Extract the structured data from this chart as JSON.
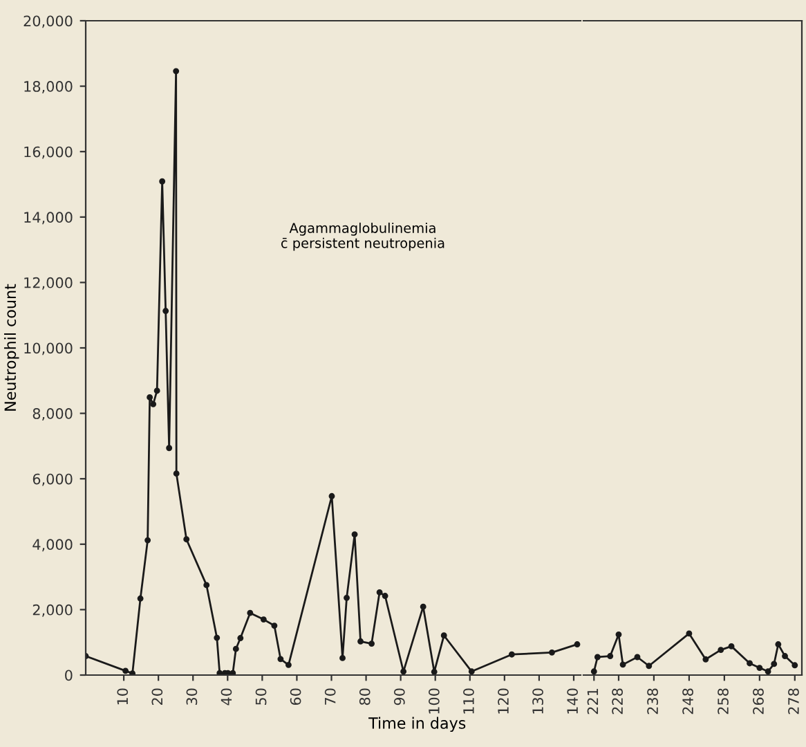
{
  "chart_data": [
    {
      "type": "line",
      "xlabel": "Time in days",
      "ylabel": "Neutrophil count",
      "annotations": [
        "Agammaglobulinemia\nc̄ persistent neutropenia"
      ],
      "marker": "circle",
      "grid": false,
      "legend": false,
      "xlim": [
        -1,
        142
      ],
      "xticks": [
        10,
        20,
        30,
        40,
        50,
        60,
        70,
        80,
        90,
        100,
        110,
        120,
        130,
        140
      ],
      "ylim": [
        0,
        20000
      ],
      "yticks": [
        0,
        {
          "value": 2000,
          "label": "2,000"
        },
        {
          "value": 4000,
          "label": "4,000"
        },
        {
          "value": 6000,
          "label": "6,000"
        },
        {
          "value": 8000,
          "label": "8,000"
        },
        {
          "value": 10000,
          "label": "10,000"
        },
        {
          "value": 12000,
          "label": "12,000"
        },
        {
          "value": 14000,
          "label": "14,000"
        },
        {
          "value": 16000,
          "label": "16,000"
        },
        {
          "value": 18000,
          "label": "18,000"
        },
        {
          "value": 20000,
          "label": "20,000"
        }
      ],
      "series": [
        {
          "color": "#1a1a1a",
          "x": [
            -1,
            10.5,
            12.5,
            14.8,
            16.9,
            17.5,
            18.5,
            19.6,
            21.1,
            22.1,
            23.1,
            25.1,
            25.2,
            28.1,
            33.9,
            36.9,
            37.7,
            39.2,
            40.1,
            41.5,
            42.4,
            43.7,
            46.5,
            50.4,
            53.5,
            55.3,
            57.6,
            70.1,
            73.2,
            74.4,
            76.7,
            78.4,
            81.6,
            83.9,
            85.5,
            90.8,
            96.5,
            99.7,
            102.5,
            110.5,
            122.1,
            133.7,
            141
          ],
          "values": [
            580,
            130,
            50,
            2340,
            4120,
            8490,
            8280,
            8690,
            15090,
            11130,
            6940,
            18460,
            6160,
            4150,
            2750,
            1140,
            60,
            60,
            60,
            60,
            800,
            1130,
            1900,
            1700,
            1510,
            490,
            310,
            5470,
            520,
            2360,
            4300,
            1030,
            960,
            2530,
            2420,
            110,
            2090,
            100,
            1210,
            110,
            630,
            690,
            940
          ]
        }
      ]
    },
    {
      "type": "line",
      "marker": "circle",
      "grid": false,
      "legend": false,
      "tick_labels": "x",
      "xlim": [
        218,
        280
      ],
      "xticks": [
        221,
        228,
        238,
        248,
        258,
        268,
        278
      ],
      "ylim": [
        0,
        20000
      ],
      "series": [
        {
          "color": "#1a1a1a",
          "x": [
            221,
            222,
            225.6,
            228,
            229.2,
            233.3,
            236.6,
            248,
            252.7,
            257,
            260,
            265.2,
            268,
            270.4,
            272.1,
            273.3,
            275.2,
            278
          ],
          "values": [
            110,
            550,
            580,
            1240,
            320,
            550,
            280,
            1270,
            480,
            770,
            880,
            360,
            220,
            110,
            340,
            940,
            580,
            300
          ]
        }
      ]
    }
  ]
}
